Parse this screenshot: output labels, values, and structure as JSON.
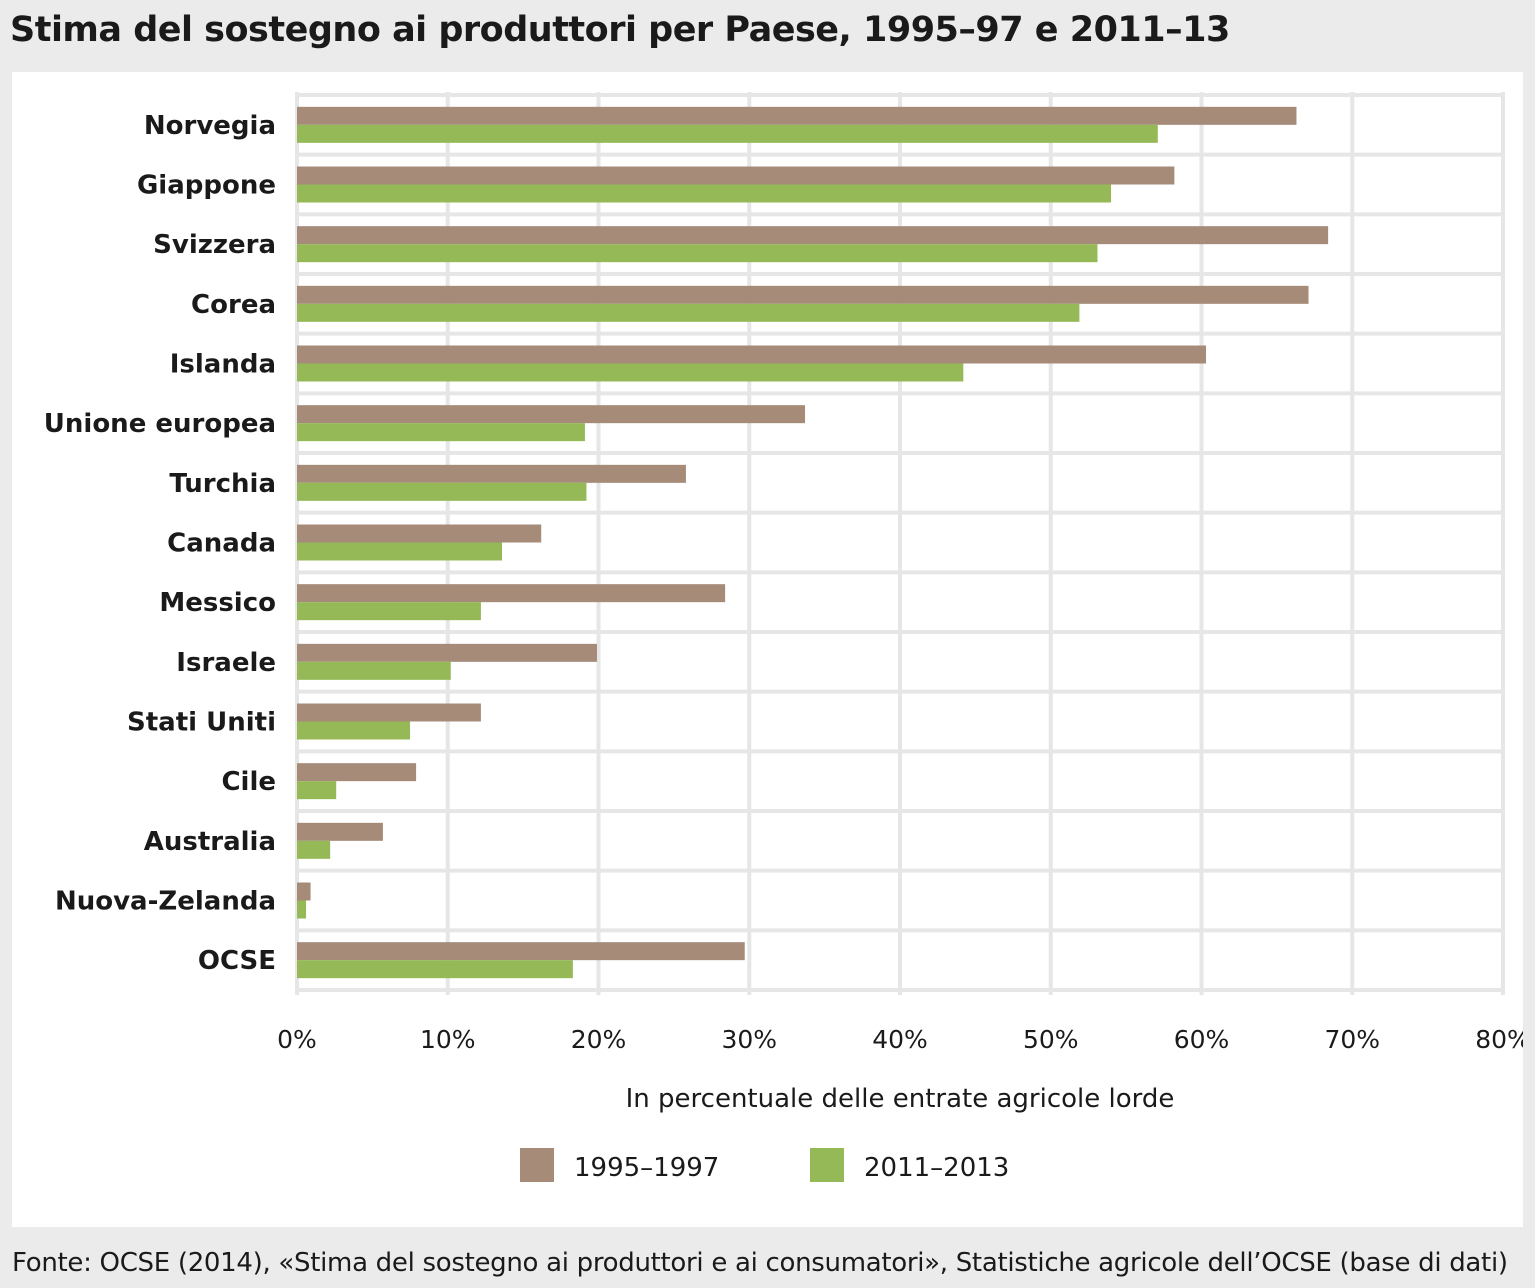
{
  "header": {
    "title": "Stima del sostegno ai produttori per Paese, 1995–97 e 2011–13"
  },
  "footer": {
    "source": "Fonte: OCSE (2014), «Stima del sostegno ai produttori e ai consumatori», Statistiche agricole dell’OCSE (base di dati)"
  },
  "colors": {
    "series_1995": "#a68b79",
    "series_2011": "#94b956",
    "gridline": "#e6e6e6",
    "background": "#ebebeb",
    "panel": "#ffffff"
  },
  "chart_data": {
    "type": "bar",
    "orientation": "horizontal",
    "title": "Stima del sostegno ai produttori per Paese, 1995–97 e 2011–13",
    "categories": [
      "Norvegia",
      "Giappone",
      "Svizzera",
      "Corea",
      "Islanda",
      "Unione europea",
      "Turchia",
      "Canada",
      "Messico",
      "Israele",
      "Stati Uniti",
      "Cile",
      "Australia",
      "Nuova-Zelanda",
      "OCSE"
    ],
    "series": [
      {
        "name": "1995–1997",
        "values": [
          66.3,
          58.2,
          68.4,
          67.1,
          60.3,
          33.7,
          25.8,
          16.2,
          28.4,
          19.9,
          12.2,
          7.9,
          5.7,
          0.9,
          29.7
        ]
      },
      {
        "name": "2011–2013",
        "values": [
          57.1,
          54.0,
          53.1,
          51.9,
          44.2,
          19.1,
          19.2,
          13.6,
          12.2,
          10.2,
          7.5,
          2.6,
          2.2,
          0.6,
          18.3
        ]
      }
    ],
    "xlim": [
      0,
      80
    ],
    "xticks": [
      0,
      10,
      20,
      30,
      40,
      50,
      60,
      70,
      80
    ],
    "xtick_labels": [
      "0%",
      "10%",
      "20%",
      "30%",
      "40%",
      "50%",
      "60%",
      "70%",
      "80%"
    ],
    "xlabel": "In percentuale delle entrate agricole lorde",
    "ylabel": "",
    "grid": true,
    "legend_position": "bottom-center"
  }
}
